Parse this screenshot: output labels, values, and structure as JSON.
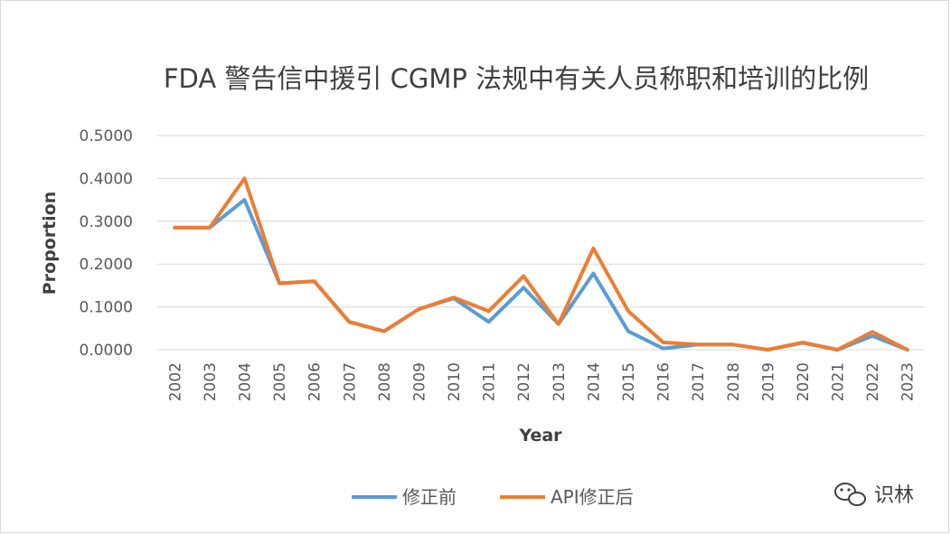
{
  "chart_data": {
    "type": "line",
    "title": "FDA 警告信中援引 CGMP 法规中有关人员称职和培训的比例",
    "xlabel": "Year",
    "ylabel": "Proportion",
    "ylim": [
      0,
      0.5
    ],
    "yticks": [
      "0.0000",
      "0.1000",
      "0.2000",
      "0.3000",
      "0.4000",
      "0.5000"
    ],
    "grid": true,
    "legend_position": "bottom",
    "categories": [
      "2002",
      "2003",
      "2004",
      "2005",
      "2006",
      "2007",
      "2008",
      "2009",
      "2010",
      "2011",
      "2012",
      "2013",
      "2014",
      "2015",
      "2016",
      "2017",
      "2018",
      "2019",
      "2020",
      "2021",
      "2022",
      "2023"
    ],
    "series": [
      {
        "name": "修正前",
        "color": "#5b9bd5",
        "values": [
          0.285,
          0.285,
          0.35,
          0.155,
          0.16,
          0.065,
          0.043,
          0.095,
          0.12,
          0.065,
          0.145,
          0.06,
          0.178,
          0.043,
          0.003,
          0.012,
          0.012,
          0.0,
          0.016,
          0.0,
          0.032,
          0.0
        ]
      },
      {
        "name": "API修正后",
        "color": "#ed7d31",
        "values": [
          0.285,
          0.285,
          0.4,
          0.155,
          0.16,
          0.065,
          0.043,
          0.095,
          0.122,
          0.09,
          0.172,
          0.06,
          0.237,
          0.09,
          0.017,
          0.012,
          0.012,
          0.0,
          0.017,
          0.0,
          0.042,
          0.0
        ]
      }
    ]
  },
  "watermark": {
    "text": "识林",
    "icon": "wechat-icon"
  }
}
